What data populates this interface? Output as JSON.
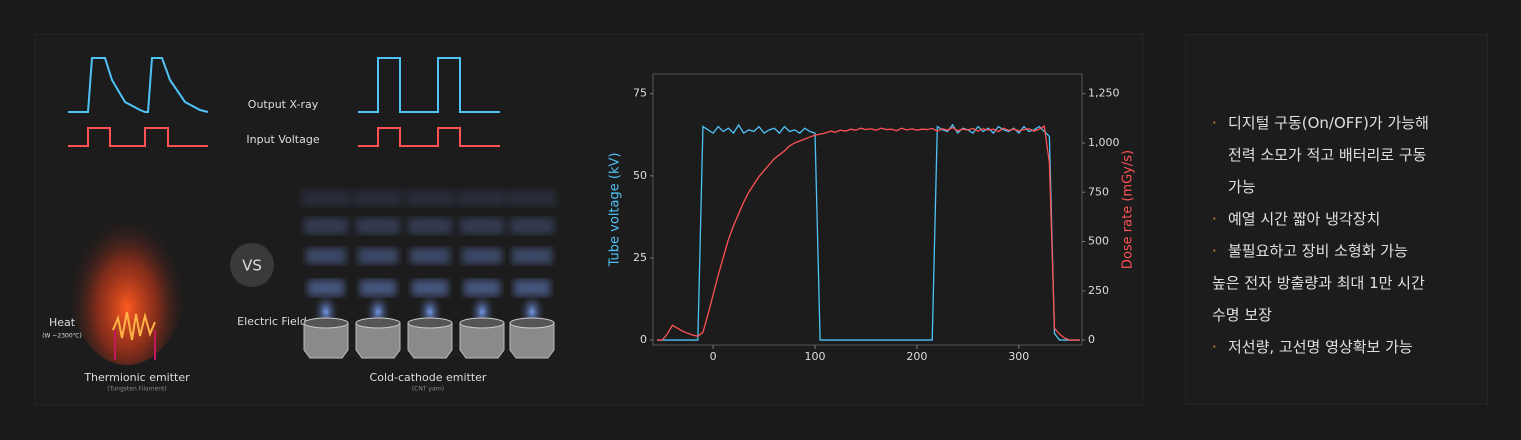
{
  "diagram": {
    "output_label": "Output X-ray",
    "input_label": "Input Voltage",
    "vs": "VS",
    "heat": "Heat",
    "heat_note": "(W ~2300℃)",
    "field": "Electric Field",
    "left_title": "Thermionic emitter",
    "left_note": "(Tungsten Filament)",
    "right_title": "Cold-cathode emitter",
    "right_note": "(CNT yarn)"
  },
  "chart_data": {
    "type": "line",
    "y_label": "Tube voltage (kV)",
    "y2_label": "Dose rate (mGy/s)",
    "x": [
      -55,
      -50,
      -45,
      -40,
      -35,
      -30,
      -25,
      -20,
      -15,
      -10,
      -5,
      0,
      5,
      10,
      15,
      20,
      25,
      30,
      35,
      40,
      45,
      50,
      55,
      60,
      65,
      70,
      75,
      80,
      85,
      90,
      95,
      100,
      105,
      110,
      115,
      120,
      125,
      130,
      135,
      140,
      145,
      150,
      155,
      160,
      165,
      170,
      175,
      180,
      185,
      190,
      195,
      200,
      205,
      210,
      215,
      220,
      225,
      230,
      235,
      240,
      245,
      250,
      255,
      260,
      265,
      270,
      275,
      280,
      285,
      290,
      295,
      300,
      305,
      310,
      315,
      320,
      325,
      330,
      335,
      340,
      345,
      350,
      355,
      360
    ],
    "series": [
      {
        "name": "Tube voltage",
        "color": "#4fc3f7",
        "values": [
          0,
          0,
          0,
          0,
          0,
          0,
          0,
          0,
          0,
          65,
          64,
          63,
          65,
          63.5,
          64.5,
          63,
          65.5,
          63,
          64,
          63.5,
          65,
          63,
          64,
          64.5,
          63,
          65,
          63.5,
          64,
          63,
          64.5,
          63.5,
          63,
          0,
          0,
          0,
          0,
          0,
          0,
          0,
          0,
          0,
          0,
          0,
          0,
          0,
          0,
          0,
          0,
          0,
          0,
          0,
          0,
          0,
          0,
          0,
          65,
          64,
          63.5,
          65.5,
          63,
          64.5,
          64,
          63,
          65,
          63.5,
          64.5,
          63,
          65,
          64,
          63.5,
          64.5,
          63,
          65,
          63.5,
          64,
          65,
          63.5,
          62,
          2,
          0,
          0,
          0,
          0,
          0
        ]
      },
      {
        "name": "Dose rate",
        "color": "#ff5252",
        "axis": "y2",
        "values": [
          0,
          0,
          30,
          75,
          60,
          45,
          35,
          25,
          20,
          40,
          130,
          230,
          330,
          420,
          510,
          580,
          640,
          700,
          750,
          790,
          830,
          860,
          890,
          920,
          940,
          960,
          985,
          1000,
          1010,
          1020,
          1030,
          1040,
          1045,
          1050,
          1060,
          1055,
          1065,
          1060,
          1070,
          1065,
          1075,
          1068,
          1072,
          1065,
          1075,
          1068,
          1070,
          1062,
          1075,
          1066,
          1072,
          1065,
          1070,
          1068,
          1074,
          1060,
          1072,
          1065,
          1078,
          1062,
          1070,
          1066,
          1074,
          1060,
          1072,
          1066,
          1070,
          1058,
          1075,
          1064,
          1070,
          1062,
          1068,
          1072,
          1060,
          1070,
          1085,
          900,
          60,
          30,
          10,
          0,
          0,
          0
        ]
      }
    ],
    "xlim": [
      -59,
      362
    ],
    "xticks": [
      0,
      100,
      200,
      300
    ],
    "ylim": [
      -1.5,
      81
    ],
    "yticks": [
      0,
      25,
      50,
      75
    ],
    "y2lim": [
      -25,
      1350
    ],
    "y2ticks": [
      0,
      250,
      500,
      750,
      {
        "value": 1000,
        "label": "1,000"
      },
      {
        "value": 1250,
        "label": "1,250"
      }
    ]
  },
  "bullets": [
    {
      "lines": [
        "디지털 구동(On/OFF)가 가능해",
        "전력 소모가 적고 배터리로 구동",
        "가능"
      ]
    },
    {
      "lines": [
        "예열 시간 짧아 냉각장치"
      ]
    },
    {
      "lines": [
        "불필요하고 장비 소형화 가능",
        "높은 전자 방출량과 최대 1만 시간",
        "수명 보장"
      ]
    },
    {
      "lines": [
        "저선량, 고선명 영상확보 가능"
      ]
    }
  ]
}
